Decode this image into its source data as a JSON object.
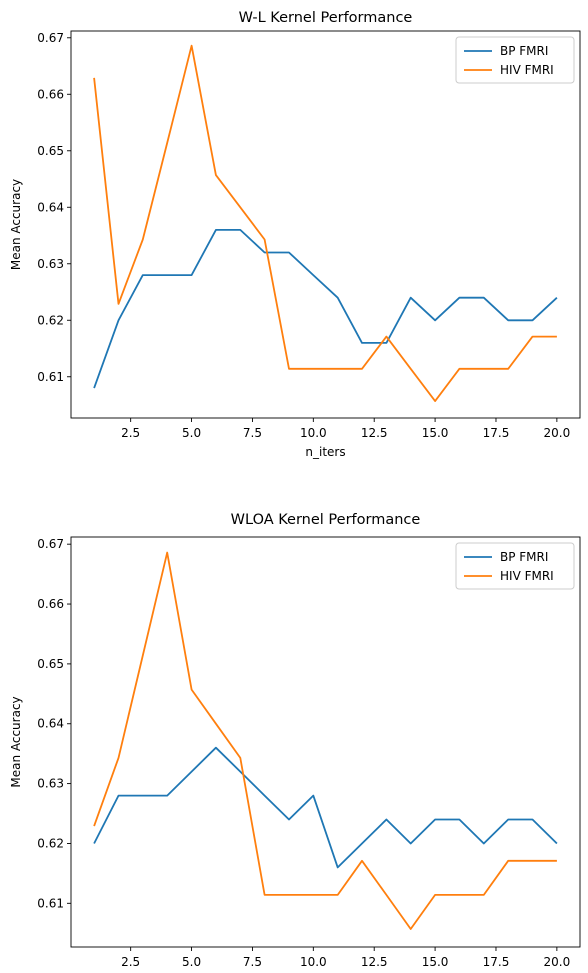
{
  "chart_data": [
    {
      "type": "line",
      "title": "W-L Kernel Performance",
      "xlabel": "n_iters",
      "ylabel": "Mean Accuracy",
      "xlim": [
        0.05,
        20.95
      ],
      "ylim": [
        0.6027,
        0.6712
      ],
      "xticks": [
        2.5,
        5.0,
        7.5,
        10.0,
        12.5,
        15.0,
        17.5,
        20.0
      ],
      "xtick_labels": [
        "2.5",
        "5.0",
        "7.5",
        "10.0",
        "12.5",
        "15.0",
        "17.5",
        "20.0"
      ],
      "yticks": [
        0.61,
        0.62,
        0.63,
        0.64,
        0.65,
        0.66,
        0.67
      ],
      "ytick_labels": [
        "0.61",
        "0.62",
        "0.63",
        "0.64",
        "0.65",
        "0.66",
        "0.67"
      ],
      "grid": false,
      "legend_position": "top-right",
      "x": [
        1,
        2,
        3,
        4,
        5,
        6,
        7,
        8,
        9,
        10,
        11,
        12,
        13,
        14,
        15,
        16,
        17,
        18,
        19,
        20
      ],
      "series": [
        {
          "name": "BP FMRI",
          "color": "#1f77b4",
          "values": [
            0.608,
            0.62,
            0.628,
            0.628,
            0.628,
            0.636,
            0.636,
            0.632,
            0.632,
            0.628,
            0.624,
            0.616,
            0.616,
            0.624,
            0.62,
            0.624,
            0.624,
            0.62,
            0.62,
            0.624
          ]
        },
        {
          "name": "HIV FMRI",
          "color": "#ff7f0e",
          "values": [
            0.6629,
            0.6229,
            0.6343,
            0.6514,
            0.6686,
            0.6457,
            0.64,
            0.6343,
            0.6114,
            0.6114,
            0.6114,
            0.6114,
            0.6171,
            0.6114,
            0.6057,
            0.6114,
            0.6114,
            0.6114,
            0.6171,
            0.6171
          ]
        }
      ]
    },
    {
      "type": "line",
      "title": "WLOA Kernel Performance",
      "xlabel": "n_iters",
      "ylabel": "Mean Accuracy",
      "xlim": [
        0.05,
        20.95
      ],
      "ylim": [
        0.6027,
        0.6712
      ],
      "xticks": [
        2.5,
        5.0,
        7.5,
        10.0,
        12.5,
        15.0,
        17.5,
        20.0
      ],
      "xtick_labels": [
        "2.5",
        "5.0",
        "7.5",
        "10.0",
        "12.5",
        "15.0",
        "17.5",
        "20.0"
      ],
      "yticks": [
        0.61,
        0.62,
        0.63,
        0.64,
        0.65,
        0.66,
        0.67
      ],
      "ytick_labels": [
        "0.61",
        "0.62",
        "0.63",
        "0.64",
        "0.65",
        "0.66",
        "0.67"
      ],
      "grid": false,
      "legend_position": "top-right",
      "x": [
        1,
        2,
        3,
        4,
        5,
        6,
        7,
        8,
        9,
        10,
        11,
        12,
        13,
        14,
        15,
        16,
        17,
        18,
        19,
        20
      ],
      "series": [
        {
          "name": "BP FMRI",
          "color": "#1f77b4",
          "values": [
            0.62,
            0.628,
            0.628,
            0.628,
            0.632,
            0.636,
            0.632,
            0.628,
            0.624,
            0.628,
            0.616,
            0.62,
            0.624,
            0.62,
            0.624,
            0.624,
            0.62,
            0.624,
            0.624,
            0.62
          ]
        },
        {
          "name": "HIV FMRI",
          "color": "#ff7f0e",
          "values": [
            0.6229,
            0.6343,
            0.6514,
            0.6686,
            0.6457,
            0.64,
            0.6343,
            0.6114,
            0.6114,
            0.6114,
            0.6114,
            0.6171,
            0.6114,
            0.6057,
            0.6114,
            0.6114,
            0.6114,
            0.6171,
            0.6171,
            0.6171
          ]
        }
      ]
    }
  ]
}
